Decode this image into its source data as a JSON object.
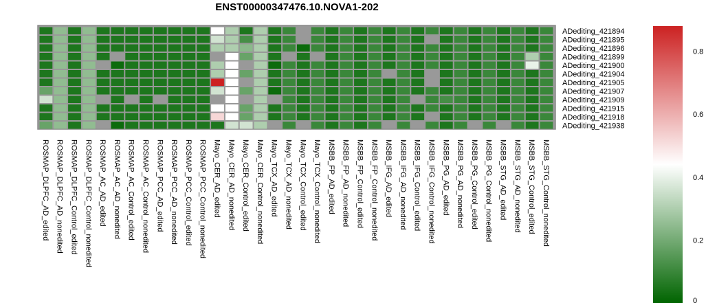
{
  "chart_data": {
    "type": "heatmap",
    "title": "ENST00000347476.10.NOVA1-202",
    "rows": [
      "ADediting_421894",
      "ADediting_421895",
      "ADediting_421896",
      "ADediting_421899",
      "ADediting_421900",
      "ADediting_421904",
      "ADediting_421905",
      "ADediting_421907",
      "ADediting_421909",
      "ADediting_421915",
      "ADediting_421918",
      "ADediting_421938"
    ],
    "columns": [
      "ROSMAP_DLPFC_AD_edited",
      "ROSMAP_DLPFC_AD_nonedited",
      "ROSMAP_DLPFC_Control_edited",
      "ROSMAP_DLPFC_Control_nonedited",
      "ROSMAP_AC_AD_edited",
      "ROSMAP_AC_AD_nonedited",
      "ROSMAP_AC_Control_edited",
      "ROSMAP_AC_Control_nonedited",
      "ROSMAP_PCC_AD_edited",
      "ROSMAP_PCC_AD_nonedited",
      "ROSMAP_PCC_Control_edited",
      "ROSMAP_PCC_Control_nonedited",
      "Mayo_CER_AD_edited",
      "Mayo_CER_AD_nonedited",
      "Mayo_CER_Control_edited",
      "Mayo_CER_Control_nonedited",
      "Mayo_TCX_AD_edited",
      "Mayo_TCX_AD_nonedited",
      "Mayo_TCX_Control_edited",
      "Mayo_TCX_Control_nonedited",
      "MSBB_FP_AD_edited",
      "MSBB_FP_AD_nonedited",
      "MSBB_FP_Control_edited",
      "MSBB_FP_Control_nonedited",
      "MSBB_IFG_AD_edited",
      "MSBB_IFG_AD_nonedited",
      "MSBB_IFG_Control_edited",
      "MSBB_IFG_Control_nonedited",
      "MSBB_PG_AD_edited",
      "MSBB_PG_AD_nonedited",
      "MSBB_PG_Control_edited",
      "MSBB_PG_Control_nonedited",
      "MSBB_STG_AD_edited",
      "MSBB_STG_AD_nonedited",
      "MSBB_STG_Control_edited",
      "MSBB_STG_Control_nonedited"
    ],
    "values": [
      [
        0.05,
        0.25,
        0.05,
        0.25,
        0.05,
        0.05,
        0.05,
        0.05,
        0.05,
        0.05,
        0.05,
        0.05,
        0.44,
        0.3,
        0.05,
        0.3,
        0.05,
        0.1,
        null,
        0.1,
        0.05,
        0.1,
        0.05,
        0.1,
        0.05,
        0.1,
        0.05,
        0.1,
        0.05,
        0.1,
        0.05,
        0.1,
        0.05,
        0.1,
        0.05,
        0.1
      ],
      [
        0.05,
        0.25,
        0.05,
        0.25,
        0.05,
        0.05,
        0.05,
        0.05,
        0.05,
        0.05,
        0.05,
        0.05,
        0.36,
        0.3,
        0.12,
        0.3,
        0.05,
        0.1,
        null,
        0.1,
        0.05,
        0.1,
        0.05,
        0.1,
        0.05,
        0.1,
        0.05,
        null,
        0.05,
        0.1,
        0.05,
        0.1,
        0.05,
        0.1,
        0.05,
        0.1
      ],
      [
        0.05,
        0.25,
        0.05,
        0.25,
        0.05,
        0.05,
        0.05,
        0.05,
        0.05,
        0.05,
        0.05,
        0.05,
        0.3,
        0.3,
        0.24,
        0.3,
        0.05,
        0.1,
        0.02,
        0.1,
        0.05,
        0.1,
        0.05,
        0.1,
        0.05,
        0.1,
        0.05,
        0.1,
        0.05,
        0.1,
        0.05,
        0.1,
        0.05,
        0.1,
        0.05,
        0.1
      ],
      [
        0.05,
        0.25,
        0.05,
        0.25,
        0.05,
        null,
        0.05,
        0.05,
        0.05,
        0.05,
        0.05,
        0.05,
        null,
        0.44,
        0.18,
        0.3,
        0.05,
        null,
        0.05,
        null,
        0.05,
        0.1,
        0.05,
        0.1,
        0.05,
        0.1,
        0.05,
        0.1,
        0.05,
        0.1,
        0.05,
        0.1,
        0.05,
        0.1,
        0.3,
        0.1
      ],
      [
        0.05,
        0.25,
        0.05,
        0.25,
        null,
        0.02,
        0.05,
        0.05,
        0.05,
        0.05,
        0.05,
        0.05,
        0.3,
        0.44,
        null,
        0.3,
        0.02,
        0.1,
        0.05,
        0.1,
        0.05,
        0.1,
        0.05,
        0.1,
        0.05,
        0.1,
        0.05,
        0.1,
        0.05,
        0.1,
        0.05,
        0.1,
        0.05,
        0.1,
        0.4,
        0.1
      ],
      [
        0.05,
        0.25,
        0.05,
        0.25,
        0.05,
        0.05,
        0.05,
        0.05,
        0.05,
        0.05,
        0.05,
        0.05,
        0.3,
        0.44,
        0.18,
        0.3,
        0.05,
        0.1,
        0.05,
        0.1,
        0.05,
        0.1,
        0.05,
        0.1,
        null,
        0.1,
        0.05,
        null,
        0.05,
        0.1,
        0.05,
        0.1,
        0.05,
        0.1,
        0.05,
        0.1
      ],
      [
        0.05,
        0.25,
        0.05,
        0.25,
        0.05,
        0.05,
        0.05,
        0.05,
        0.05,
        0.05,
        0.05,
        0.05,
        0.88,
        0.44,
        null,
        0.3,
        0.05,
        0.1,
        0.05,
        0.1,
        0.05,
        0.1,
        0.05,
        0.1,
        0.05,
        0.1,
        0.05,
        null,
        0.05,
        0.1,
        0.05,
        0.1,
        0.05,
        0.1,
        0.05,
        0.1
      ],
      [
        0.18,
        0.25,
        0.05,
        0.25,
        0.05,
        0.05,
        0.05,
        0.05,
        0.05,
        0.05,
        0.05,
        0.05,
        0.36,
        0.44,
        0.18,
        0.3,
        0.02,
        0.1,
        0.05,
        0.1,
        0.05,
        0.1,
        0.05,
        0.1,
        0.05,
        0.1,
        0.05,
        0.1,
        0.05,
        0.1,
        0.05,
        0.1,
        0.05,
        0.1,
        0.05,
        0.1
      ],
      [
        0.36,
        0.25,
        0.05,
        0.25,
        null,
        0.05,
        null,
        0.05,
        null,
        0.05,
        0.05,
        0.05,
        null,
        0.44,
        null,
        0.3,
        null,
        0.1,
        0.05,
        0.1,
        0.05,
        0.1,
        0.05,
        0.1,
        0.05,
        0.1,
        null,
        0.1,
        0.12,
        0.1,
        0.05,
        0.1,
        0.05,
        0.1,
        0.05,
        0.1
      ],
      [
        0.05,
        0.25,
        0.05,
        0.25,
        0.05,
        0.05,
        0.05,
        0.05,
        0.05,
        0.05,
        0.05,
        0.05,
        0.44,
        0.44,
        0.18,
        0.3,
        0.05,
        0.1,
        0.05,
        0.1,
        0.05,
        0.1,
        0.05,
        0.1,
        0.05,
        0.1,
        0.05,
        0.1,
        0.05,
        0.1,
        0.05,
        0.1,
        0.05,
        0.1,
        0.05,
        0.1
      ],
      [
        0.05,
        0.25,
        0.05,
        0.25,
        0.05,
        0.05,
        0.05,
        0.05,
        0.05,
        0.05,
        0.05,
        0.05,
        0.52,
        0.44,
        0.18,
        0.3,
        0.05,
        0.1,
        0.05,
        0.1,
        0.05,
        0.1,
        0.05,
        0.1,
        0.05,
        0.1,
        0.05,
        null,
        0.05,
        0.1,
        0.05,
        0.1,
        0.05,
        0.1,
        0.05,
        0.1
      ],
      [
        0.18,
        0.25,
        0.05,
        0.25,
        null,
        0.02,
        0.05,
        0.05,
        0.05,
        0.05,
        0.05,
        0.05,
        0.05,
        0.36,
        0.36,
        0.3,
        null,
        0.1,
        null,
        0.1,
        0.05,
        0.1,
        0.05,
        0.1,
        null,
        0.1,
        null,
        0.1,
        0.05,
        0.1,
        null,
        0.1,
        null,
        0.1,
        0.05,
        0.1
      ]
    ],
    "colorscale": {
      "min": 0,
      "max": 0.88,
      "colors": [
        "#006400",
        "#ffffff",
        "#cc2222"
      ],
      "na_color": "#999999",
      "ticks": [
        "0",
        "0.2",
        "0.4",
        "0.6",
        "0.8"
      ]
    },
    "legend_placement": "right"
  }
}
